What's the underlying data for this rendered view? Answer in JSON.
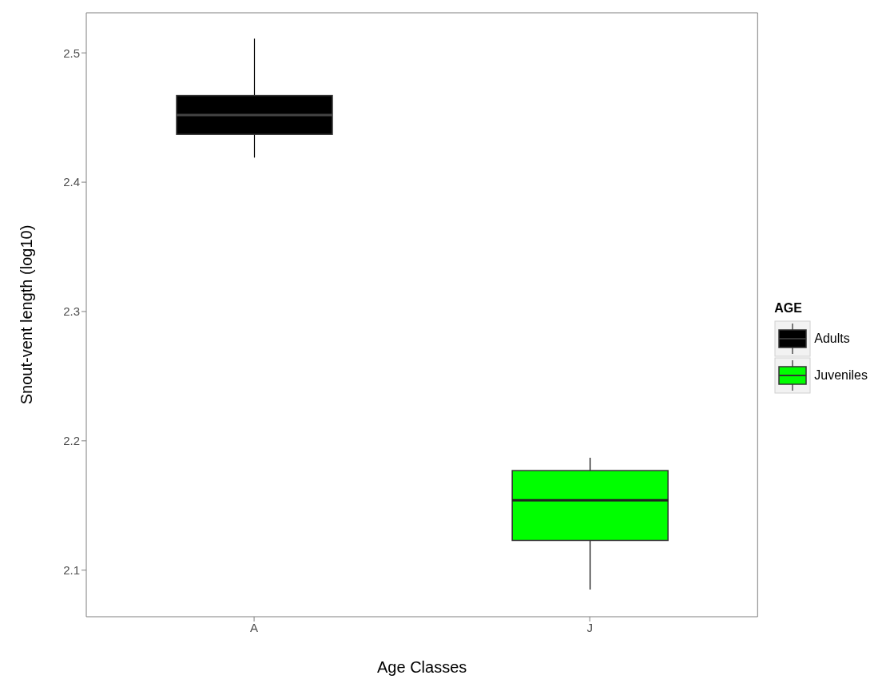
{
  "chart_data": {
    "type": "box",
    "xlabel": "Age Classes",
    "ylabel": "Snout-vent length (log10)",
    "legend_title": "AGE",
    "legend": "right",
    "categories": [
      "A",
      "J"
    ],
    "ylim": [
      2.064,
      2.531
    ],
    "yticks": [
      2.1,
      2.2,
      2.3,
      2.4,
      2.5
    ],
    "series": [
      {
        "name": "Adults",
        "color": "#000000",
        "boxes": [
          {
            "low": 2.419,
            "q1": 2.437,
            "median": 2.452,
            "q3": 2.467,
            "high": 2.511
          },
          null
        ]
      },
      {
        "name": "Juveniles",
        "color": "#00ff00",
        "boxes": [
          null,
          {
            "low": 2.085,
            "q1": 2.123,
            "median": 2.154,
            "q3": 2.177,
            "high": 2.187
          }
        ]
      }
    ]
  }
}
